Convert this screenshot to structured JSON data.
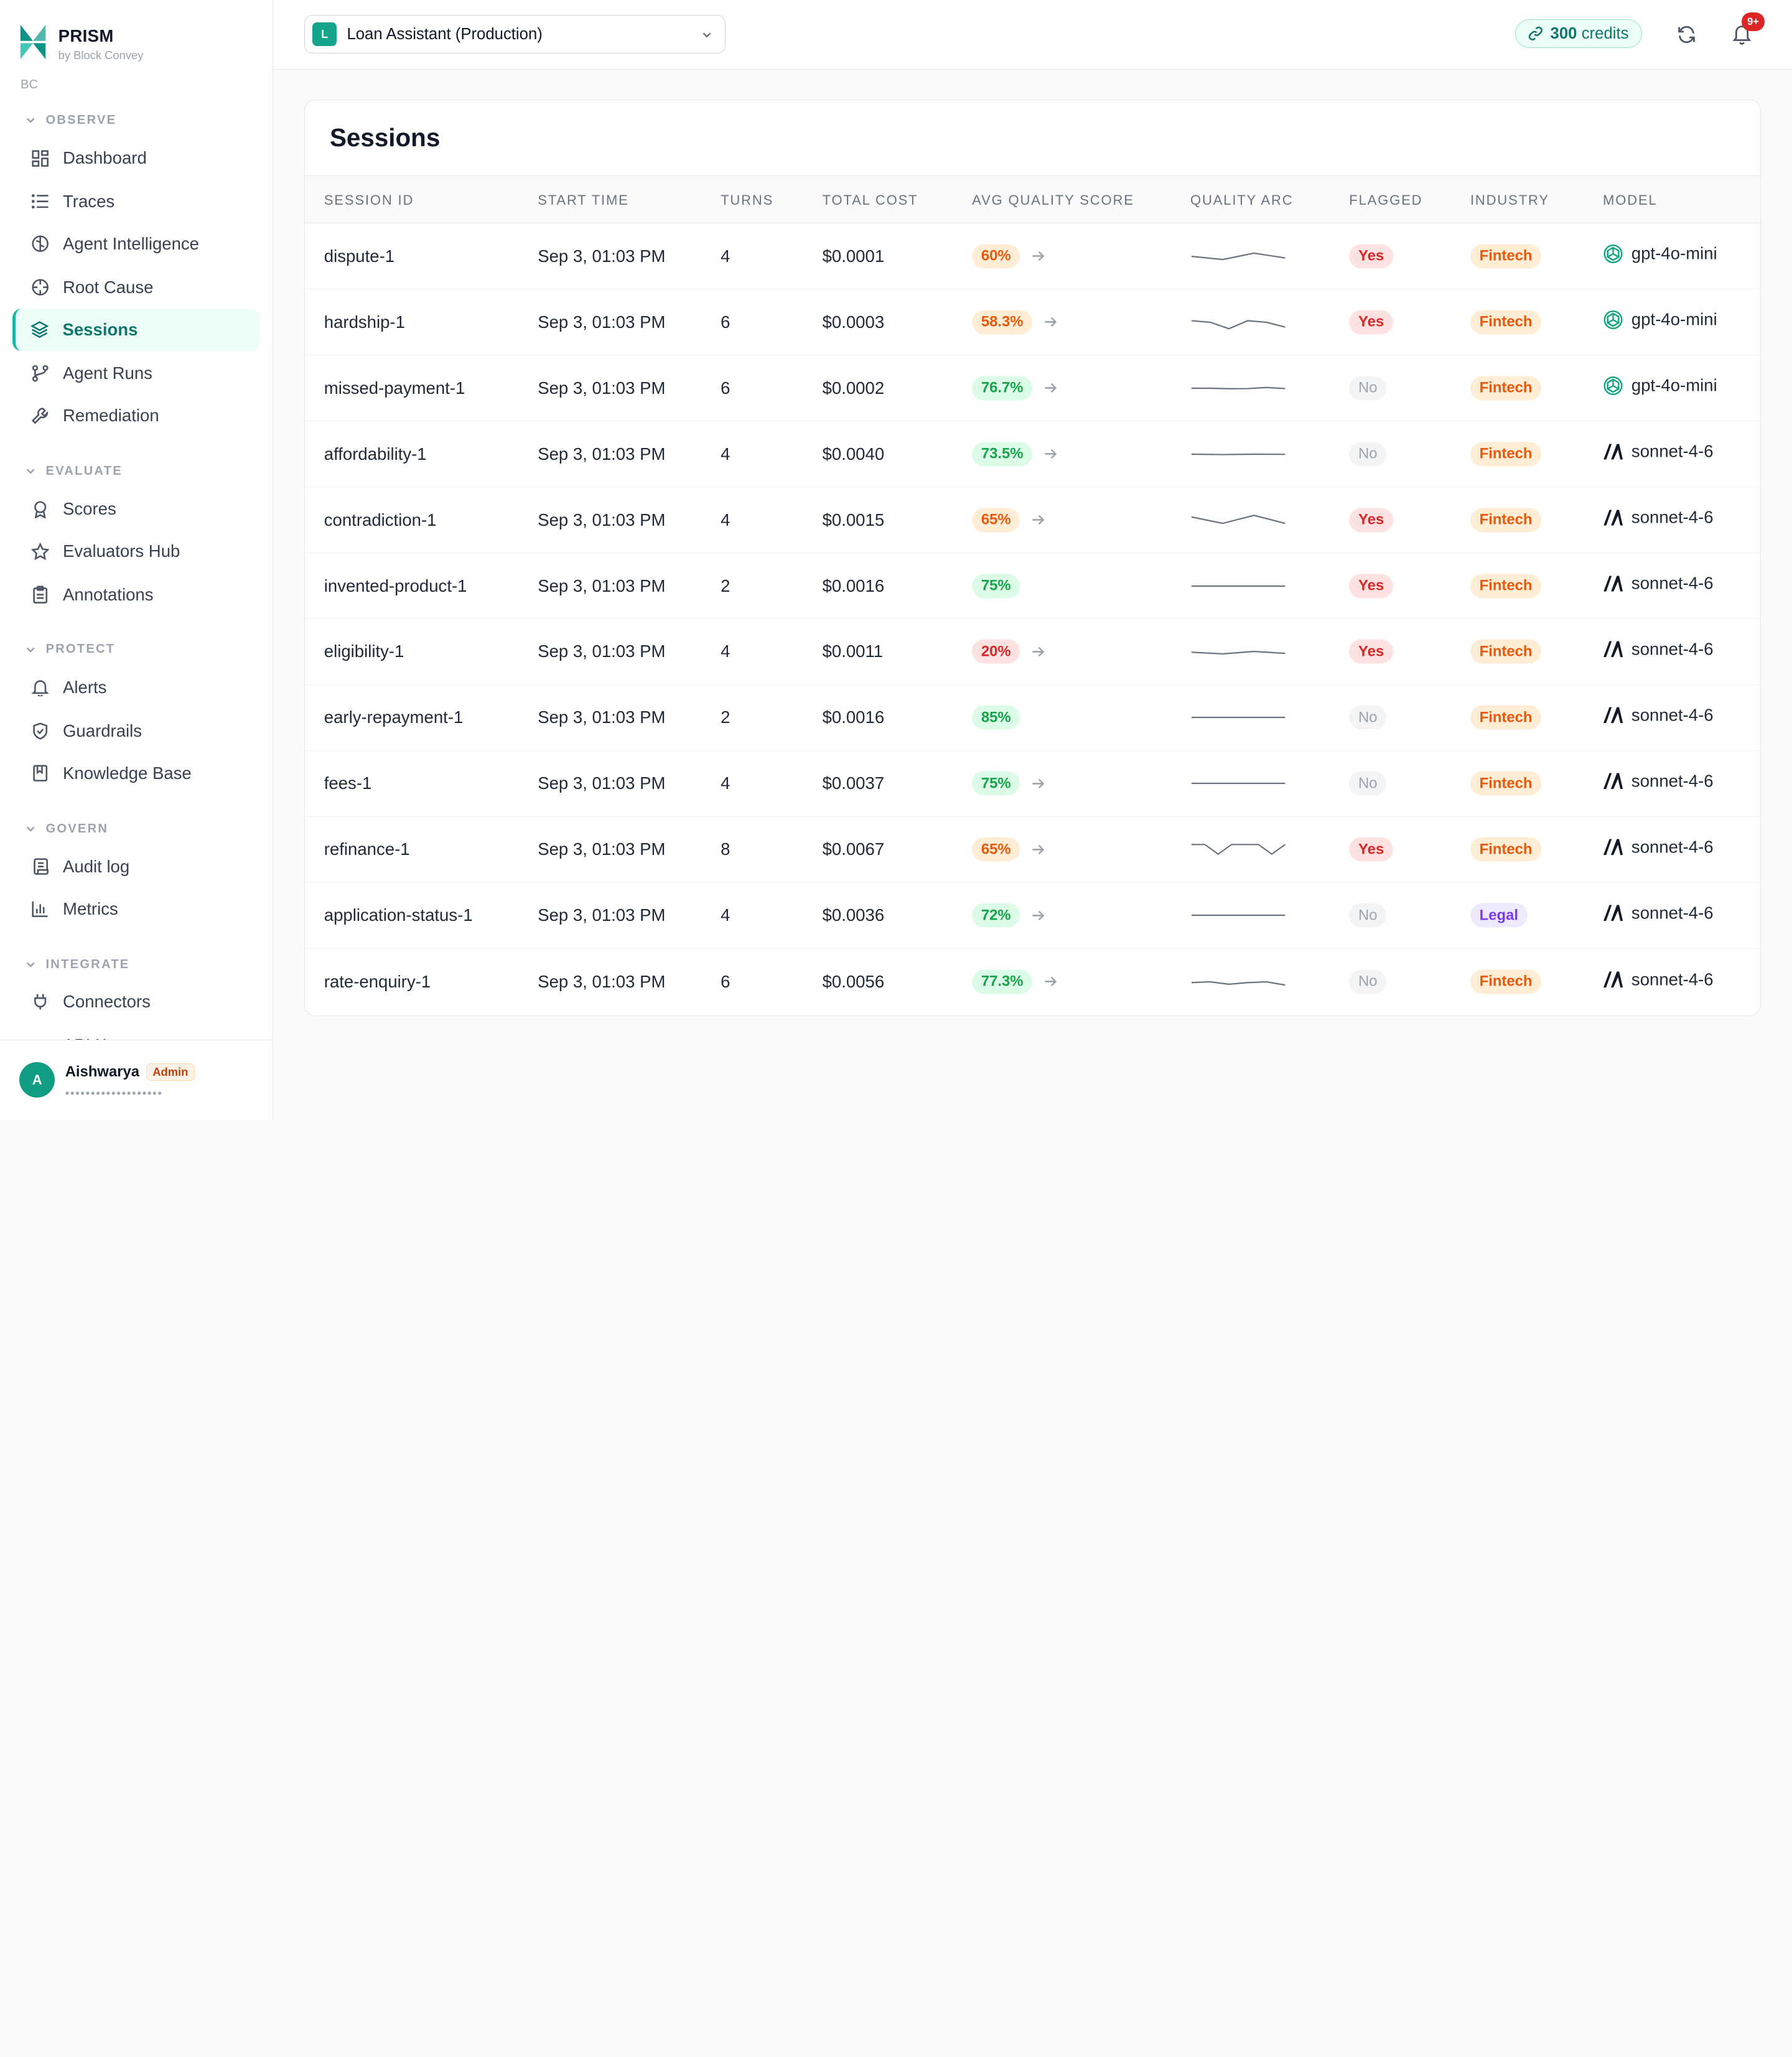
{
  "brand": {
    "name": "PRISM",
    "sub": "by Block Convey"
  },
  "org": "BC",
  "sections": {
    "observe": "OBSERVE",
    "evaluate": "EVALUATE",
    "protect": "PROTECT",
    "govern": "GOVERN",
    "integrate": "INTEGRATE"
  },
  "nav": {
    "dashboard": "Dashboard",
    "traces": "Traces",
    "agent_intelligence": "Agent Intelligence",
    "root_cause": "Root Cause",
    "sessions": "Sessions",
    "agent_runs": "Agent Runs",
    "remediation": "Remediation",
    "scores": "Scores",
    "evaluators_hub": "Evaluators Hub",
    "annotations": "Annotations",
    "alerts": "Alerts",
    "guardrails": "Guardrails",
    "knowledge_base": "Knowledge Base",
    "audit_log": "Audit log",
    "metrics": "Metrics",
    "connectors": "Connectors",
    "api_keys_partial": "API K"
  },
  "user": {
    "initial": "A",
    "name": "Aishwarya",
    "role": "Admin",
    "email_masked": "•••••••••••••••••••"
  },
  "topbar": {
    "agent_initial": "L",
    "agent_name": "Loan Assistant (Production)",
    "credits_value": "300",
    "credits_label": "credits",
    "notif_badge": "9+"
  },
  "page": {
    "title": "Sessions"
  },
  "table": {
    "headers": {
      "session_id": "SESSION ID",
      "start_time": "START TIME",
      "turns": "TURNS",
      "total_cost": "TOTAL COST",
      "avg_quality": "AVG QUALITY SCORE",
      "quality_arc": "QUALITY ARC",
      "flagged": "FLAGGED",
      "industry": "INDUSTRY",
      "model": "MODEL"
    },
    "rows": [
      {
        "id": "dispute-1",
        "start": "Sep 3, 01:03 PM",
        "turns": "4",
        "cost": "$0.0001",
        "quality": "60%",
        "q_level": "orange",
        "has_arrow": true,
        "arc": [
          0.5,
          0.3,
          0.7,
          0.4
        ],
        "flagged": "Yes",
        "industry": "Fintech",
        "model": "gpt-4o-mini",
        "provider": "openai"
      },
      {
        "id": "hardship-1",
        "start": "Sep 3, 01:03 PM",
        "turns": "6",
        "cost": "$0.0003",
        "quality": "58.3%",
        "q_level": "orange",
        "has_arrow": true,
        "arc": [
          0.6,
          0.5,
          0.1,
          0.6,
          0.5,
          0.2
        ],
        "flagged": "Yes",
        "industry": "Fintech",
        "model": "gpt-4o-mini",
        "provider": "openai"
      },
      {
        "id": "missed-payment-1",
        "start": "Sep 3, 01:03 PM",
        "turns": "6",
        "cost": "$0.0002",
        "quality": "76.7%",
        "q_level": "green",
        "has_arrow": true,
        "arc": [
          0.5,
          0.5,
          0.47,
          0.48,
          0.55,
          0.48
        ],
        "flagged": "No",
        "industry": "Fintech",
        "model": "gpt-4o-mini",
        "provider": "openai"
      },
      {
        "id": "affordability-1",
        "start": "Sep 3, 01:03 PM",
        "turns": "4",
        "cost": "$0.0040",
        "quality": "73.5%",
        "q_level": "green",
        "has_arrow": true,
        "arc": [
          0.5,
          0.48,
          0.5,
          0.49
        ],
        "flagged": "No",
        "industry": "Fintech",
        "model": "sonnet-4-6",
        "provider": "anthropic"
      },
      {
        "id": "contradiction-1",
        "start": "Sep 3, 01:03 PM",
        "turns": "4",
        "cost": "$0.0015",
        "quality": "65%",
        "q_level": "orange",
        "has_arrow": true,
        "arc": [
          0.7,
          0.3,
          0.8,
          0.3
        ],
        "flagged": "Yes",
        "industry": "Fintech",
        "model": "sonnet-4-6",
        "provider": "anthropic"
      },
      {
        "id": "invented-product-1",
        "start": "Sep 3, 01:03 PM",
        "turns": "2",
        "cost": "$0.0016",
        "quality": "75%",
        "q_level": "green",
        "has_arrow": false,
        "arc": [
          0.5,
          0.5
        ],
        "flagged": "Yes",
        "industry": "Fintech",
        "model": "sonnet-4-6",
        "provider": "anthropic"
      },
      {
        "id": "eligibility-1",
        "start": "Sep 3, 01:03 PM",
        "turns": "4",
        "cost": "$0.0011",
        "quality": "20%",
        "q_level": "red",
        "has_arrow": true,
        "arc": [
          0.45,
          0.35,
          0.5,
          0.38
        ],
        "flagged": "Yes",
        "industry": "Fintech",
        "model": "sonnet-4-6",
        "provider": "anthropic"
      },
      {
        "id": "early-repayment-1",
        "start": "Sep 3, 01:03 PM",
        "turns": "2",
        "cost": "$0.0016",
        "quality": "85%",
        "q_level": "green",
        "has_arrow": false,
        "arc": [
          0.5,
          0.5
        ],
        "flagged": "No",
        "industry": "Fintech",
        "model": "sonnet-4-6",
        "provider": "anthropic"
      },
      {
        "id": "fees-1",
        "start": "Sep 3, 01:03 PM",
        "turns": "4",
        "cost": "$0.0037",
        "quality": "75%",
        "q_level": "green",
        "has_arrow": true,
        "arc": [
          0.5,
          0.5,
          0.5,
          0.5
        ],
        "flagged": "No",
        "industry": "Fintech",
        "model": "sonnet-4-6",
        "provider": "anthropic"
      },
      {
        "id": "refinance-1",
        "start": "Sep 3, 01:03 PM",
        "turns": "8",
        "cost": "$0.0067",
        "quality": "65%",
        "q_level": "orange",
        "has_arrow": true,
        "arc": [
          0.8,
          0.8,
          0.2,
          0.8,
          0.8,
          0.8,
          0.2,
          0.8
        ],
        "flagged": "Yes",
        "industry": "Fintech",
        "model": "sonnet-4-6",
        "provider": "anthropic"
      },
      {
        "id": "application-status-1",
        "start": "Sep 3, 01:03 PM",
        "turns": "4",
        "cost": "$0.0036",
        "quality": "72%",
        "q_level": "green",
        "has_arrow": true,
        "arc": [
          0.5,
          0.5,
          0.5,
          0.5
        ],
        "flagged": "No",
        "industry": "Legal",
        "model": "sonnet-4-6",
        "provider": "anthropic"
      },
      {
        "id": "rate-enquiry-1",
        "start": "Sep 3, 01:03 PM",
        "turns": "6",
        "cost": "$0.0056",
        "quality": "77.3%",
        "q_level": "green",
        "has_arrow": true,
        "arc": [
          0.45,
          0.5,
          0.35,
          0.45,
          0.5,
          0.3
        ],
        "flagged": "No",
        "industry": "Fintech",
        "model": "sonnet-4-6",
        "provider": "anthropic"
      }
    ]
  }
}
